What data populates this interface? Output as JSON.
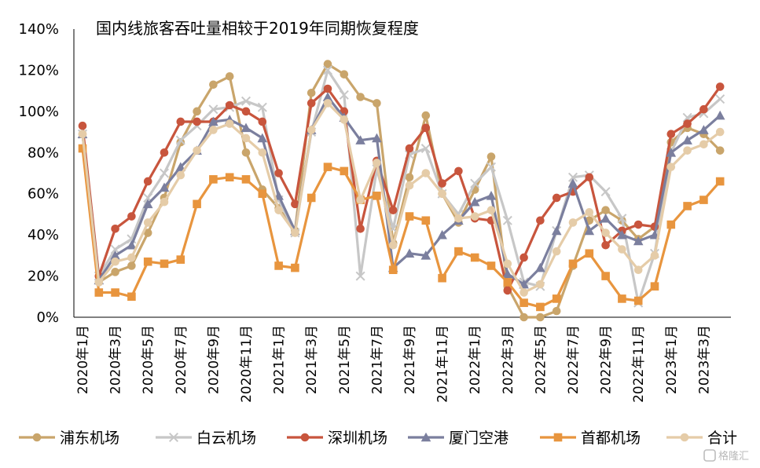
{
  "chart_data": {
    "type": "line",
    "title": "国内线旅客吞吐量相较于2019年同期恢复程度",
    "xlabel": "",
    "ylabel": "",
    "ylim": [
      0,
      140
    ],
    "yticks": [
      "0%",
      "20%",
      "40%",
      "60%",
      "80%",
      "100%",
      "120%",
      "140%"
    ],
    "grid": false,
    "legend_position": "bottom",
    "x": [
      "2020年1月",
      "2020年2月",
      "2020年3月",
      "2020年4月",
      "2020年5月",
      "2020年6月",
      "2020年7月",
      "2020年8月",
      "2020年9月",
      "2020年10月",
      "2020年11月",
      "2020年12月",
      "2021年1月",
      "2021年2月",
      "2021年3月",
      "2021年4月",
      "2021年5月",
      "2021年6月",
      "2021年7月",
      "2021年8月",
      "2021年9月",
      "2021年10月",
      "2021年11月",
      "2021年12月",
      "2022年1月",
      "2022年2月",
      "2022年3月",
      "2022年4月",
      "2022年5月",
      "2022年6月",
      "2022年7月",
      "2022年8月",
      "2022年9月",
      "2022年10月",
      "2022年11月",
      "2022年12月",
      "2023年1月",
      "2023年2月",
      "2023年3月",
      "2023年4月"
    ],
    "x_tick_labels": [
      "2020年1月",
      "2020年3月",
      "2020年5月",
      "2020年7月",
      "2020年9月",
      "2020年11月",
      "2021年1月",
      "2021年3月",
      "2021年5月",
      "2021年7月",
      "2021年9月",
      "2021年11月",
      "2022年1月",
      "2022年3月",
      "2022年5月",
      "2022年7月",
      "2022年9月",
      "2022年11月",
      "2023年1月",
      "2023年3月"
    ],
    "series": [
      {
        "name": "浦东机场",
        "color": "#C9A56B",
        "marker": "circle",
        "values": [
          89,
          17,
          22,
          25,
          41,
          58,
          85,
          100,
          113,
          117,
          80,
          62,
          53,
          42,
          109,
          123,
          118,
          107,
          104,
          36,
          68,
          98,
          60,
          46,
          62,
          78,
          15,
          0,
          0,
          3,
          25,
          47,
          52,
          47,
          38,
          44,
          85,
          92,
          89,
          81
        ]
      },
      {
        "name": "白云机场",
        "color": "#C7C7C7",
        "marker": "x",
        "values": [
          89,
          20,
          33,
          38,
          58,
          70,
          86,
          93,
          101,
          102,
          105,
          102,
          57,
          41,
          90,
          120,
          108,
          20,
          72,
          43,
          79,
          82,
          60,
          50,
          65,
          73,
          47,
          17,
          15,
          42,
          68,
          69,
          61,
          48,
          7,
          31,
          80,
          97,
          99,
          106
        ]
      },
      {
        "name": "深圳机场",
        "color": "#C8553D",
        "marker": "circle",
        "values": [
          93,
          20,
          43,
          49,
          66,
          80,
          95,
          95,
          95,
          103,
          100,
          95,
          70,
          55,
          104,
          111,
          100,
          43,
          76,
          52,
          82,
          92,
          65,
          71,
          48,
          47,
          13,
          29,
          47,
          58,
          61,
          68,
          35,
          42,
          45,
          44,
          89,
          94,
          101,
          112
        ]
      },
      {
        "name": "厦门空港",
        "color": "#7B7F9E",
        "marker": "triangle",
        "values": [
          89,
          18,
          30,
          35,
          55,
          63,
          73,
          81,
          95,
          96,
          92,
          87,
          59,
          42,
          91,
          107,
          97,
          86,
          87,
          24,
          31,
          30,
          40,
          47,
          56,
          59,
          21,
          16,
          24,
          42,
          65,
          42,
          48,
          40,
          37,
          40,
          80,
          86,
          91,
          98
        ]
      },
      {
        "name": "首都机场",
        "color": "#E8953E",
        "marker": "square",
        "values": [
          82,
          12,
          12,
          10,
          27,
          26,
          28,
          55,
          67,
          68,
          67,
          60,
          25,
          24,
          58,
          73,
          71,
          57,
          59,
          23,
          49,
          47,
          19,
          32,
          29,
          25,
          17,
          7,
          5,
          9,
          26,
          31,
          20,
          9,
          8,
          15,
          45,
          54,
          57,
          66
        ]
      },
      {
        "name": "合计",
        "color": "#E5CCA8",
        "marker": "circle",
        "values": [
          89,
          17,
          27,
          29,
          46,
          56,
          69,
          81,
          91,
          94,
          87,
          80,
          52,
          41,
          91,
          104,
          96,
          57,
          75,
          35,
          64,
          70,
          60,
          48,
          49,
          52,
          26,
          12,
          16,
          32,
          46,
          51,
          41,
          33,
          23,
          30,
          73,
          81,
          84,
          90
        ]
      }
    ]
  },
  "watermark": "格隆汇"
}
